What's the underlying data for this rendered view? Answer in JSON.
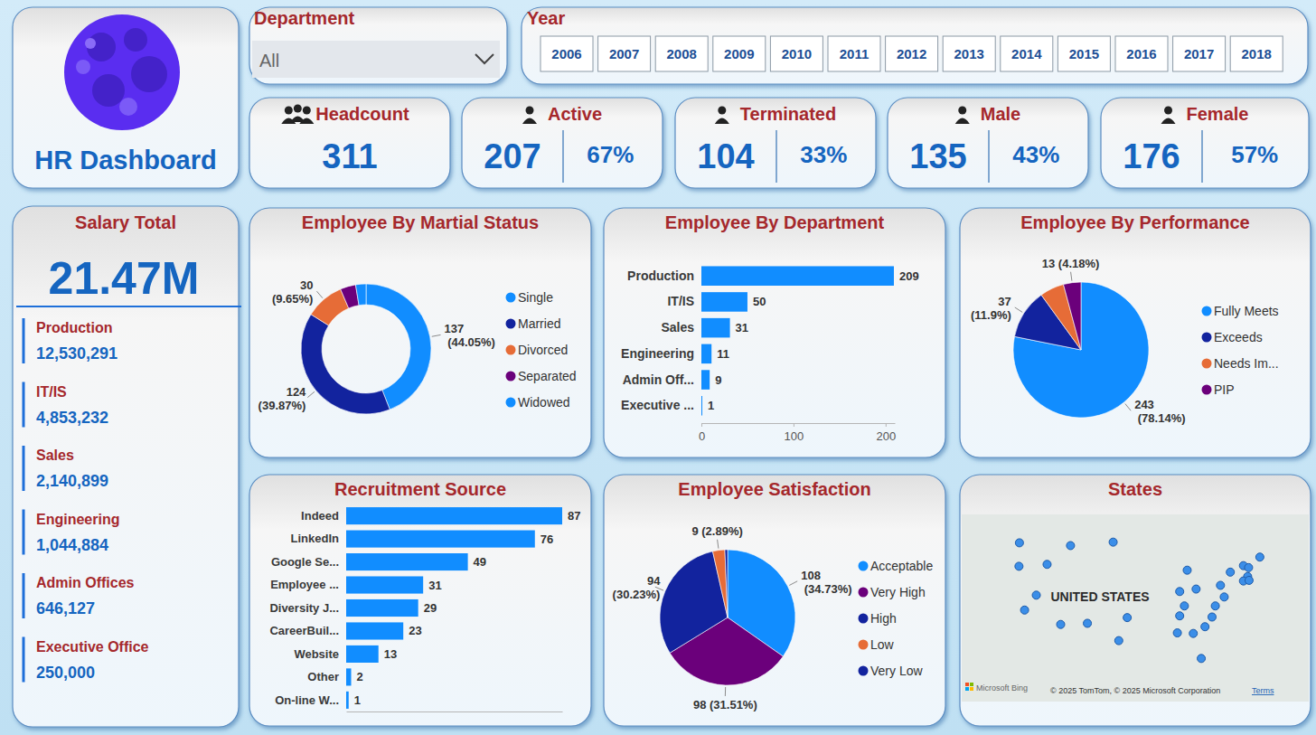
{
  "header": {
    "title": "HR Dashboard"
  },
  "filters": {
    "department": {
      "label": "Department",
      "selected": "All"
    },
    "year": {
      "label": "Year",
      "options": [
        2006,
        2007,
        2008,
        2009,
        2010,
        2011,
        2012,
        2013,
        2014,
        2015,
        2016,
        2017,
        2018
      ]
    }
  },
  "kpis": [
    {
      "label": "Headcount",
      "value": 311
    },
    {
      "label": "Active",
      "value": 207,
      "percent": "67%"
    },
    {
      "label": "Terminated",
      "value": 104,
      "percent": "33%"
    },
    {
      "label": "Male",
      "value": 135,
      "percent": "43%"
    },
    {
      "label": "Female",
      "value": 176,
      "percent": "57%"
    }
  ],
  "salary": {
    "title": "Salary Total",
    "total": "21.47M",
    "rows": [
      {
        "department": "Production",
        "amount": "12,530,291"
      },
      {
        "department": "IT/IS",
        "amount": "4,853,232"
      },
      {
        "department": "Sales",
        "amount": "2,140,899"
      },
      {
        "department": "Engineering",
        "amount": "1,044,884"
      },
      {
        "department": "Admin Offices",
        "amount": "646,127"
      },
      {
        "department": "Executive Office",
        "amount": "250,000"
      }
    ]
  },
  "chart_data": [
    {
      "type": "donut",
      "title": "Employee By Martial Status",
      "categories": [
        "Single",
        "Married",
        "Divorced",
        "Separated",
        "Widowed"
      ],
      "values": [
        137,
        124,
        30,
        12,
        8
      ],
      "colors": [
        "#118DFF",
        "#12239E",
        "#E66C37",
        "#6B007B",
        "#118DFF"
      ],
      "value_labels": [
        "137 (44.05%)",
        "124 (39.87%)",
        "30 (9.65%)",
        null,
        null
      ],
      "data_labels": true,
      "legend": "right"
    },
    {
      "type": "bar",
      "orientation": "horizontal",
      "title": "Employee By Department",
      "categories": [
        "Production",
        "IT/IS",
        "Sales",
        "Engineering",
        "Admin Off...",
        "Executive ..."
      ],
      "values": [
        209,
        50,
        31,
        11,
        9,
        1
      ],
      "color": "#118DFF",
      "xlim": [
        0,
        210
      ],
      "xticks": [
        0,
        100,
        200
      ],
      "grid": false,
      "data_labels": true
    },
    {
      "type": "pie",
      "title": "Employee By Performance",
      "categories": [
        "Fully Meets",
        "Exceeds",
        "Needs Im...",
        "PIP"
      ],
      "values": [
        243,
        37,
        18,
        13
      ],
      "colors": [
        "#118DFF",
        "#12239E",
        "#E66C37",
        "#6B007B"
      ],
      "value_labels": [
        "243 (78.14%)",
        "37 (11.9%)",
        null,
        "13 (4.18%)"
      ],
      "data_labels": true,
      "legend": "right"
    },
    {
      "type": "bar",
      "orientation": "horizontal",
      "title": "Recruitment Source",
      "categories": [
        "Indeed",
        "LinkedIn",
        "Google Se...",
        "Employee ...",
        "Diversity J...",
        "CareerBuil...",
        "Website",
        "Other",
        "On-line W..."
      ],
      "values": [
        87,
        76,
        49,
        31,
        29,
        23,
        13,
        2,
        1
      ],
      "color": "#118DFF",
      "xlim": [
        0,
        87
      ],
      "grid": false,
      "data_labels": true,
      "tick_labels": "y"
    },
    {
      "type": "pie",
      "title": "Employee Satisfaction",
      "categories": [
        "Acceptable",
        "Very High",
        "High",
        "Low",
        "Very Low"
      ],
      "values": [
        108,
        98,
        94,
        9,
        2
      ],
      "colors": [
        "#118DFF",
        "#6B007B",
        "#12239E",
        "#E66C37",
        "#12239E"
      ],
      "value_labels": [
        "108 (34.73%)",
        "98 (31.51%)",
        "94 (30.23%)",
        "9 (2.89%)",
        null
      ],
      "data_labels": true,
      "legend": "right"
    }
  ],
  "map": {
    "title": "States",
    "label": "UNITED STATES",
    "provider": "Microsoft Bing",
    "attribution": "© 2025 TomTom, © 2025 Microsoft Corporation",
    "link": "Terms",
    "points": [
      [
        -120.5,
        47.4
      ],
      [
        -109.6,
        47.0
      ],
      [
        -100.5,
        47.5
      ],
      [
        -120.6,
        43.9
      ],
      [
        -114.6,
        44.2
      ],
      [
        -116.9,
        39.3
      ],
      [
        -119.4,
        36.8
      ],
      [
        -111.7,
        34.3
      ],
      [
        -106.0,
        34.5
      ],
      [
        -99.3,
        31.4
      ],
      [
        -97.5,
        35.5
      ],
      [
        -86.3,
        39.9
      ],
      [
        -82.8,
        40.3
      ],
      [
        -85.3,
        37.5
      ],
      [
        -86.3,
        35.8
      ],
      [
        -86.8,
        32.8
      ],
      [
        -83.4,
        32.7
      ],
      [
        -81.7,
        28.1
      ],
      [
        -80.9,
        33.9
      ],
      [
        -79.4,
        35.6
      ],
      [
        -78.7,
        37.5
      ],
      [
        -76.8,
        39.0
      ],
      [
        -77.6,
        40.9
      ],
      [
        -75.5,
        43.0
      ],
      [
        -72.7,
        44.0
      ],
      [
        -71.6,
        43.7
      ],
      [
        -71.8,
        42.3
      ],
      [
        -72.7,
        41.6
      ],
      [
        -71.5,
        41.7
      ],
      [
        -69.2,
        45.3
      ],
      [
        -84.7,
        43.3
      ]
    ]
  }
}
